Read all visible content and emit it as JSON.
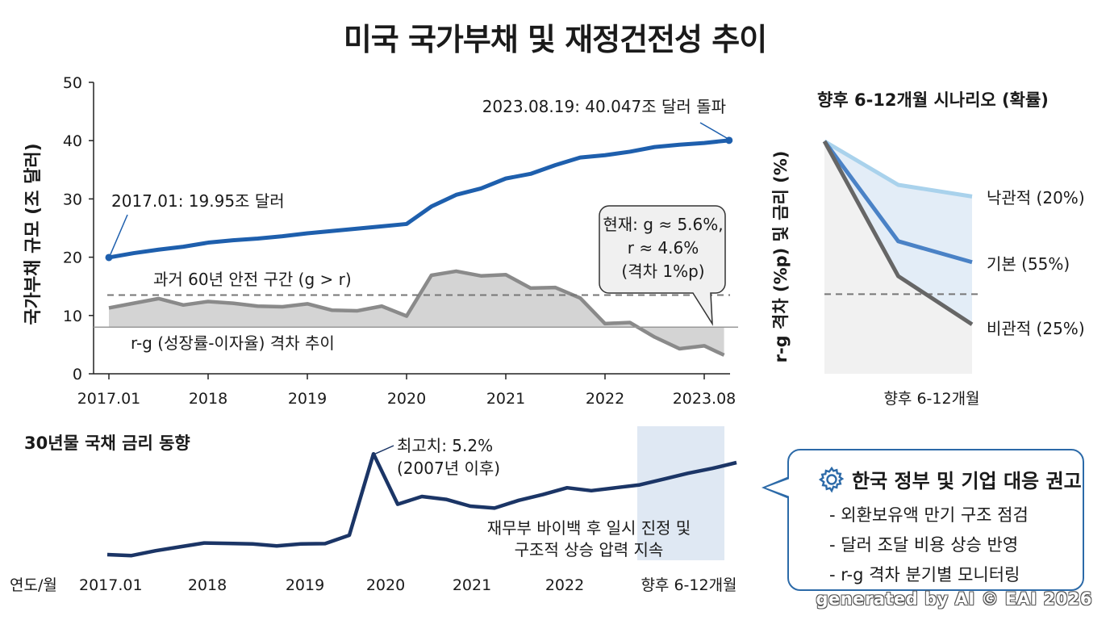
{
  "title": "미국 국가부채 및 재정건전성 추이",
  "chart_data": [
    {
      "type": "line",
      "ylabel": "국가부채 규모 (조 달러)",
      "ylim": [
        0,
        50
      ],
      "y_ticks": [
        "0",
        "10",
        "20",
        "30",
        "40",
        "50"
      ],
      "x_ticks": [
        "2017.01",
        "2018",
        "2019",
        "2020",
        "2021",
        "2022",
        "2023.08"
      ],
      "grid": false,
      "series": [
        {
          "key": "debt",
          "color": "#1e5fad",
          "x": [
            2017.0,
            2017.25,
            2017.5,
            2017.75,
            2018.0,
            2018.25,
            2018.5,
            2018.75,
            2019.0,
            2019.25,
            2019.5,
            2019.75,
            2020.0,
            2020.25,
            2020.5,
            2020.75,
            2021.0,
            2021.25,
            2021.5,
            2021.75,
            2022.0,
            2022.25,
            2022.5,
            2022.75,
            2023.0,
            2023.25
          ],
          "values": [
            19.95,
            20.7,
            21.3,
            21.8,
            22.5,
            22.9,
            23.2,
            23.6,
            24.1,
            24.5,
            24.9,
            25.3,
            25.7,
            28.7,
            30.7,
            31.8,
            33.5,
            34.3,
            35.8,
            37.1,
            37.5,
            38.1,
            38.9,
            39.3,
            39.6,
            40.047
          ]
        },
        {
          "key": "rg",
          "color": "#8a8a8a",
          "x": [
            2017.0,
            2017.25,
            2017.5,
            2017.75,
            2018.0,
            2018.25,
            2018.5,
            2018.75,
            2019.0,
            2019.25,
            2019.5,
            2019.75,
            2020.0,
            2020.25,
            2020.5,
            2020.75,
            2021.0,
            2021.25,
            2021.5,
            2021.75,
            2022.0,
            2022.25,
            2022.5,
            2022.75,
            2023.0,
            2023.2
          ],
          "values": [
            11.3,
            12.1,
            12.9,
            11.8,
            12.4,
            12.1,
            11.6,
            11.5,
            12.0,
            10.9,
            10.8,
            11.6,
            9.9,
            16.9,
            17.6,
            16.8,
            17.0,
            14.7,
            14.8,
            13.0,
            8.6,
            8.8,
            6.3,
            4.3,
            4.8,
            3.2
          ]
        }
      ],
      "reference_lines": {
        "dashed": 13.5,
        "solid": 8
      },
      "annotations": {
        "start": "2017.01: 19.95조 달러",
        "peak": "2023.08.19: 40.047조 달러 돌파",
        "safe_zone": "과거 60년 안전 구간 (g > r)",
        "rg_label": "r-g (성장률-이자율) 격차 추이",
        "callout_lines": [
          "현재: g ≈ 5.6%,",
          "r ≈ 4.6%",
          "(격차 1%p)"
        ]
      }
    },
    {
      "type": "line",
      "title": "30년물 국채 금리 동향",
      "x_axis_label": "연도/월",
      "x_ticks": [
        "2017.01",
        "2018",
        "2019",
        "2020",
        "2021",
        "2022",
        "향후 6-12개월"
      ],
      "series": [
        {
          "key": "bond",
          "color": "#1b3566",
          "x": [
            2017.0,
            2017.25,
            2017.5,
            2017.75,
            2018.0,
            2018.25,
            2018.5,
            2018.75,
            2019.0,
            2019.25,
            2019.5,
            2019.75,
            2020.0,
            2020.25,
            2020.5,
            2020.75,
            2021.0,
            2021.25,
            2021.5,
            2021.75,
            2022.0,
            2022.25,
            2022.5,
            2022.75,
            2023.0,
            2023.25,
            2023.5
          ],
          "values": [
            0.0,
            -0.05,
            0.2,
            0.4,
            0.6,
            0.58,
            0.55,
            0.45,
            0.55,
            0.57,
            1.0,
            5.2,
            2.6,
            3.0,
            2.85,
            2.5,
            2.4,
            2.8,
            3.1,
            3.45,
            3.3,
            3.45,
            3.6,
            3.9,
            4.2,
            4.45,
            4.75
          ]
        }
      ],
      "shaded_region_label": "향후 6-12개월",
      "annotations": {
        "peak_lines": [
          "최고치: 5.2%",
          "(2007년 이후)"
        ],
        "note_lines": [
          "재무부 바이백 후 일시 진정 및",
          "구조적 상승 압력 지속"
        ]
      }
    },
    {
      "type": "area",
      "title": "향후 6-12개월 시나리오 (확률)",
      "ylabel": "r-g 격차 (%p) 및 금리 (%)",
      "xlabel": "향후 6-12개월",
      "series": [
        {
          "name": "낙관적 (20%)",
          "color": "#a9d2ec",
          "x": [
            0,
            0.5,
            1
          ],
          "values": [
            40,
            32.5,
            30.5
          ]
        },
        {
          "name": "기본 (55%)",
          "color": "#4a82c6",
          "x": [
            0,
            0.5,
            1
          ],
          "values": [
            40,
            22.8,
            19.2
          ]
        },
        {
          "name": "비관적 (25%)",
          "color": "#666666",
          "x": [
            0,
            0.5,
            1
          ],
          "values": [
            40,
            16.8,
            8.5
          ]
        }
      ],
      "reference_line": 13.7
    }
  ],
  "recommendation": {
    "icon": "gear-icon",
    "title": "한국 정부 및 기업 대응 권고",
    "items": [
      "- 외환보유액 만기 구조 점검",
      "- 달러 조달 비용 상승 반영",
      "- r-g 격차 분기별 모니터링"
    ]
  },
  "watermark": "generated by AI © EAI 2026"
}
